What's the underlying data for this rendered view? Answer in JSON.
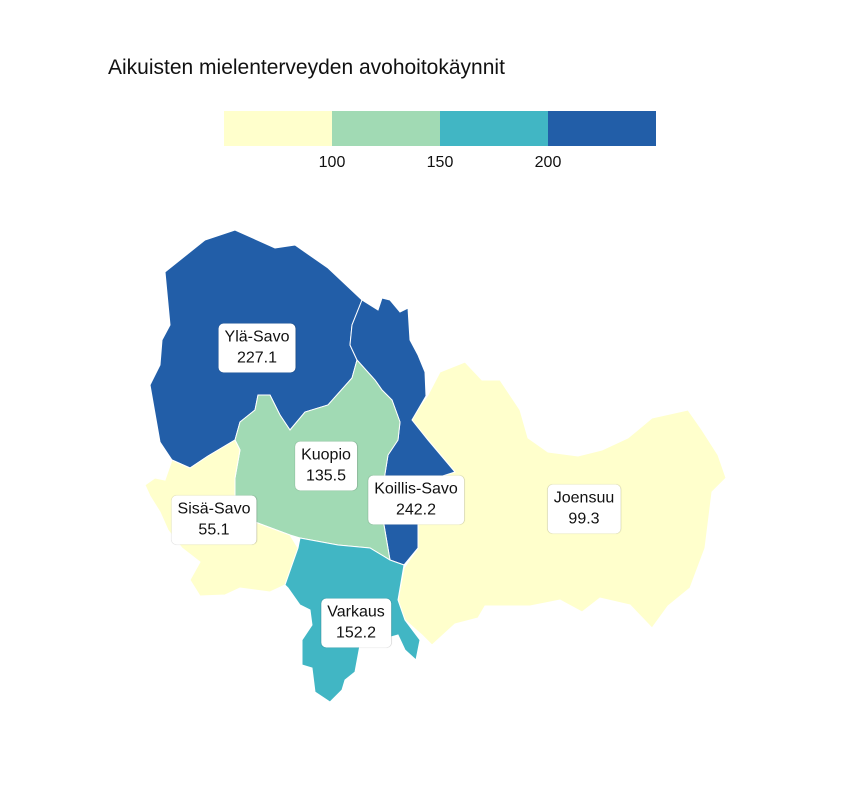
{
  "title": "Aikuisten mielenterveyden avohoitokäynnit",
  "legend": {
    "colors": [
      "#ffffcc",
      "#a1dab4",
      "#41b6c4",
      "#225ea8"
    ],
    "ticks": [
      "100",
      "150",
      "200"
    ]
  },
  "regions": [
    {
      "name": "Ylä-Savo",
      "value": "227.1",
      "color": "#225ea8"
    },
    {
      "name": "Kuopio",
      "value": "135.5",
      "color": "#a1dab4"
    },
    {
      "name": "Koillis-Savo",
      "value": "242.2",
      "color": "#225ea8"
    },
    {
      "name": "Sisä-Savo",
      "value": "55.1",
      "color": "#ffffcc"
    },
    {
      "name": "Varkaus",
      "value": "152.2",
      "color": "#41b6c4"
    },
    {
      "name": "Joensuu",
      "value": "99.3",
      "color": "#ffffcc"
    }
  ]
}
